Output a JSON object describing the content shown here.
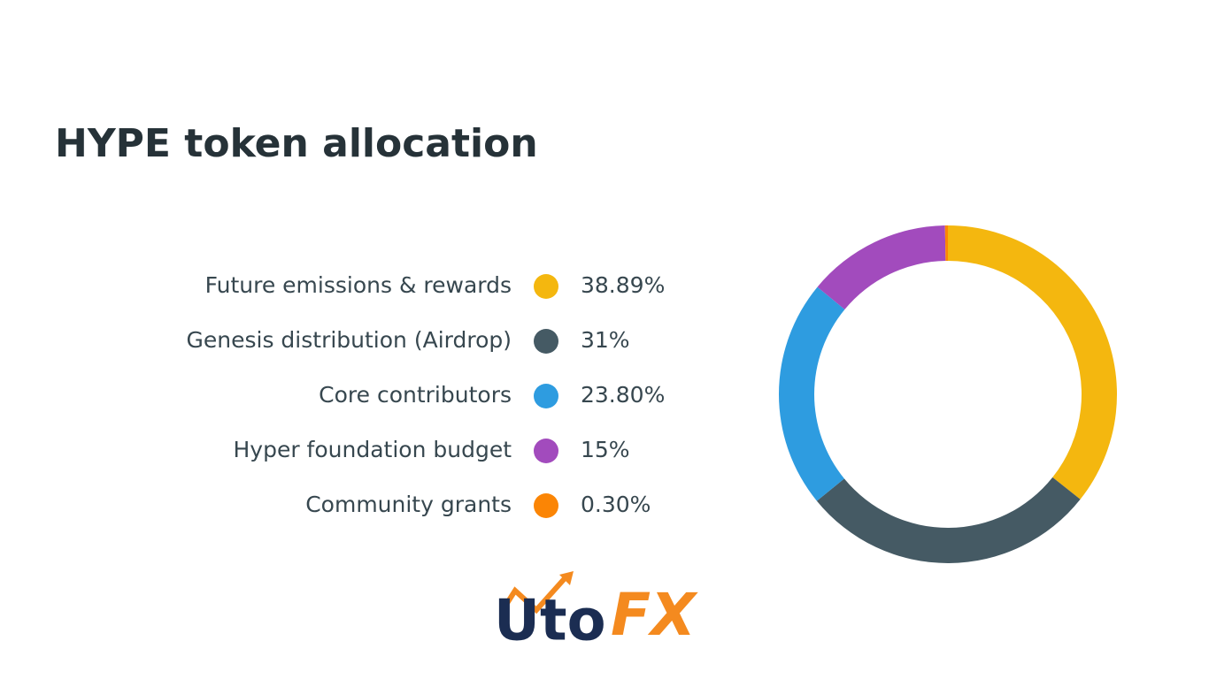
{
  "chart_data": {
    "type": "donut",
    "title": "HYPE token allocation",
    "categories": [
      "Future emissions & rewards",
      "Genesis distribution (Airdrop)",
      "Core contributors",
      "Hyper foundation budget",
      "Community grants"
    ],
    "values": [
      38.89,
      31,
      23.8,
      15,
      0.3
    ],
    "value_labels": [
      "38.89%",
      "31%",
      "23.80%",
      "15%",
      "0.30%"
    ],
    "colors": [
      "#f4b70f",
      "#455a64",
      "#2e9ce0",
      "#a24bbd",
      "#fb8505"
    ]
  },
  "logo": {
    "left": "Uto",
    "right": "FX"
  }
}
